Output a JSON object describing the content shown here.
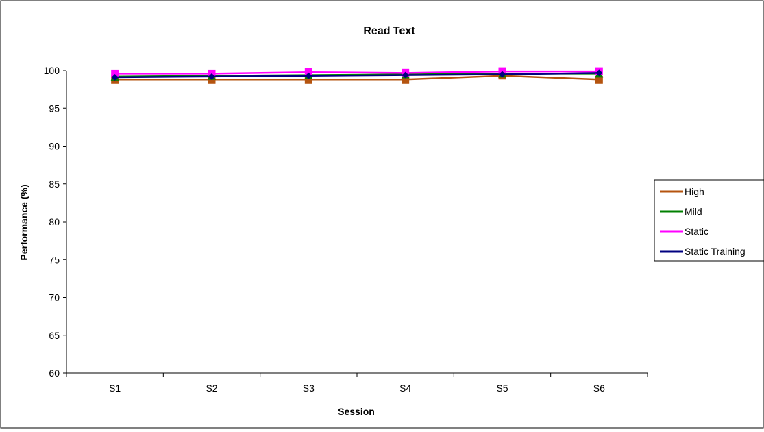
{
  "chart_data": {
    "type": "line",
    "title": "Read Text",
    "xlabel": "Session",
    "ylabel": "Performance (%)",
    "categories": [
      "S1",
      "S2",
      "S3",
      "S4",
      "S5",
      "S6"
    ],
    "ylim": [
      60,
      100
    ],
    "yticks": [
      60,
      65,
      70,
      75,
      80,
      85,
      90,
      95,
      100
    ],
    "grid": false,
    "legend_position": "right",
    "series": [
      {
        "name": "High",
        "color": "#b5540f",
        "marker": "square",
        "values": [
          98.8,
          98.8,
          98.8,
          98.8,
          99.3,
          98.8
        ]
      },
      {
        "name": "Mild",
        "color": "#008000",
        "marker": "triangle",
        "values": [
          99.2,
          99.3,
          99.4,
          99.5,
          99.6,
          99.6
        ]
      },
      {
        "name": "Static",
        "color": "#ff00ff",
        "marker": "square",
        "values": [
          99.6,
          99.6,
          99.8,
          99.7,
          99.9,
          99.9
        ]
      },
      {
        "name": "Static Training",
        "color": "#000080",
        "marker": "diamond",
        "values": [
          99.1,
          99.2,
          99.3,
          99.4,
          99.5,
          99.7
        ]
      }
    ]
  }
}
